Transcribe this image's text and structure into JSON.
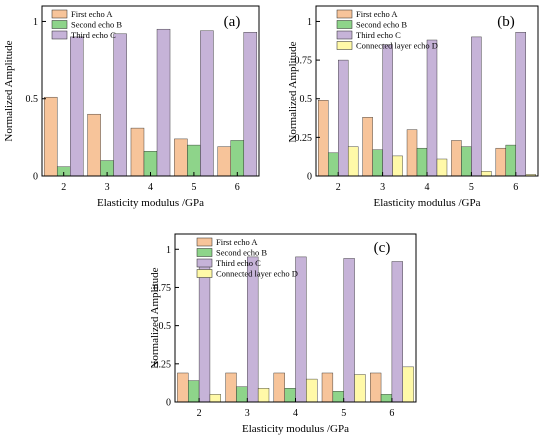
{
  "colors": {
    "echo_a": "#F7C49A",
    "echo_b": "#8ED48A",
    "echo_c": "#C6B3D8",
    "echo_d": "#FFF9A8",
    "bar_stroke": "#222222"
  },
  "chart_data": [
    {
      "type": "bar",
      "panel_label": "(a)",
      "xlabel": "Elasticity modulus /GPa",
      "ylabel": "Normalized Amplitude",
      "categories": [
        "2",
        "3",
        "4",
        "5",
        "6"
      ],
      "ylim": [
        0,
        1.1
      ],
      "yticks": [
        "0",
        "0.5",
        "1"
      ],
      "grid": false,
      "legend_position": "top-left",
      "series": [
        {
          "name": "First echo A",
          "color_key": "echo_a",
          "values": [
            0.51,
            0.4,
            0.31,
            0.24,
            0.19
          ]
        },
        {
          "name": "Second echo B",
          "color_key": "echo_b",
          "values": [
            0.06,
            0.1,
            0.16,
            0.2,
            0.23
          ]
        },
        {
          "name": "Third echo C",
          "color_key": "echo_c",
          "values": [
            0.9,
            0.92,
            0.95,
            0.94,
            0.93
          ]
        }
      ]
    },
    {
      "type": "bar",
      "panel_label": "(b)",
      "xlabel": "Elasticity modulus /GPa",
      "ylabel": "Normalized Amplitude",
      "categories": [
        "2",
        "3",
        "4",
        "5",
        "6"
      ],
      "ylim": [
        0,
        1.1
      ],
      "yticks": [
        "0",
        "0.25",
        "0.5",
        "0.75",
        "1"
      ],
      "grid": false,
      "legend_position": "top-left",
      "series": [
        {
          "name": "First echo A",
          "color_key": "echo_a",
          "values": [
            0.49,
            0.38,
            0.3,
            0.23,
            0.18
          ]
        },
        {
          "name": "Second echo B",
          "color_key": "echo_b",
          "values": [
            0.15,
            0.17,
            0.18,
            0.19,
            0.2
          ]
        },
        {
          "name": "Third echo C",
          "color_key": "echo_c",
          "values": [
            0.75,
            0.85,
            0.88,
            0.9,
            0.93
          ]
        },
        {
          "name": "Connected layer echo D",
          "color_key": "echo_d",
          "values": [
            0.19,
            0.13,
            0.11,
            0.03,
            0.01
          ]
        }
      ]
    },
    {
      "type": "bar",
      "panel_label": "(c)",
      "xlabel": "Elasticity modulus /GPa",
      "ylabel": "Normalized Amplitude",
      "categories": [
        "2",
        "3",
        "4",
        "5",
        "6"
      ],
      "ylim": [
        0,
        1.1
      ],
      "yticks": [
        "0",
        "0.25",
        "0.5",
        "0.75",
        "1"
      ],
      "grid": false,
      "legend_position": "top-left",
      "series": [
        {
          "name": "First echo A",
          "color_key": "echo_a",
          "values": [
            0.19,
            0.19,
            0.19,
            0.19,
            0.19
          ]
        },
        {
          "name": "Second echo B",
          "color_key": "echo_b",
          "values": [
            0.14,
            0.1,
            0.09,
            0.07,
            0.05
          ]
        },
        {
          "name": "Third echo C",
          "color_key": "echo_c",
          "values": [
            0.9,
            0.95,
            0.95,
            0.94,
            0.92
          ]
        },
        {
          "name": "Connected layer echo D",
          "color_key": "echo_d",
          "values": [
            0.05,
            0.09,
            0.15,
            0.18,
            0.23
          ]
        }
      ]
    }
  ]
}
